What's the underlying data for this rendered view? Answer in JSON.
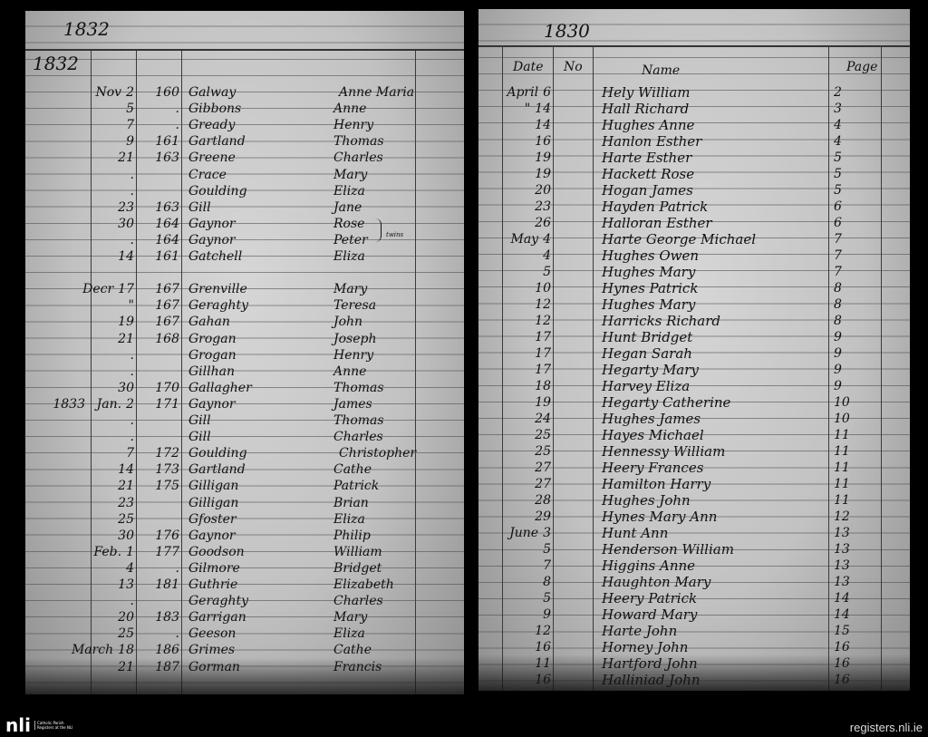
{
  "left_page": {
    "header_year": "1832",
    "column_year": "1832",
    "sections": [
      {
        "rows": [
          {
            "month": "Nov",
            "day": "2",
            "no": "160",
            "surname": "Galway",
            "forename": "Anne Maria"
          },
          {
            "day": "5",
            "no": ".",
            "surname": "Gibbons",
            "forename": "Anne"
          },
          {
            "day": "7",
            "no": ".",
            "surname": "Gready",
            "forename": "Henry"
          },
          {
            "day": "9",
            "no": "161",
            "surname": "Gartland",
            "forename": "Thomas"
          },
          {
            "day": "21",
            "no": "163",
            "surname": "Greene",
            "forename": "Charles"
          },
          {
            "day": ".",
            "surname": "Crace",
            "forename": "Mary"
          },
          {
            "day": ".",
            "surname": "Goulding",
            "forename": "Eliza"
          },
          {
            "day": "23",
            "no": "163",
            "surname": "Gill",
            "forename": "Jane"
          },
          {
            "day": "30",
            "no": "164",
            "surname": "Gaynor",
            "forename": "Rose"
          },
          {
            "day": ".",
            "no": "164",
            "surname": "Gaynor",
            "forename": "Peter",
            "note": "twins"
          },
          {
            "day": "14",
            "no": "161",
            "surname": "Gatchell",
            "forename": "Eliza"
          }
        ]
      },
      {
        "rows": [
          {
            "month": "Decr",
            "day": "17",
            "no": "167",
            "surname": "Grenville",
            "forename": "Mary"
          },
          {
            "day": "\"",
            "no": "167",
            "surname": "Geraghty",
            "forename": "Teresa"
          },
          {
            "day": "19",
            "no": "167",
            "surname": "Gahan",
            "forename": "John"
          },
          {
            "day": "21",
            "no": "168",
            "surname": "Grogan",
            "forename": "Joseph"
          },
          {
            "day": ".",
            "surname": "Grogan",
            "forename": "Henry"
          },
          {
            "day": ".",
            "surname": "Gillhan",
            "forename": "Anne"
          },
          {
            "day": "30",
            "no": "170",
            "surname": "Gallagher",
            "forename": "Thomas"
          },
          {
            "year": "1833",
            "month": "Jan.",
            "day": "2",
            "no": "171",
            "surname": "Gaynor",
            "forename": "James"
          },
          {
            "day": ".",
            "surname": "Gill",
            "forename": "Thomas"
          },
          {
            "day": ".",
            "surname": "Gill",
            "forename": "Charles"
          },
          {
            "day": "7",
            "no": "172",
            "surname": "Goulding",
            "forename": "Christopher"
          },
          {
            "day": "14",
            "no": "173",
            "surname": "Gartland",
            "forename": "Cathe"
          },
          {
            "day": "21",
            "no": "175",
            "surname": "Gilligan",
            "forename": "Patrick"
          },
          {
            "day": "23",
            "surname": "Gilligan",
            "forename": "Brian"
          },
          {
            "day": "25",
            "surname": "Gfoster",
            "forename": "Eliza"
          },
          {
            "day": "30",
            "no": "176",
            "surname": "Gaynor",
            "forename": "Philip"
          },
          {
            "month": "Feb.",
            "day": "1",
            "no": "177",
            "surname": "Goodson",
            "forename": "William"
          },
          {
            "day": "4",
            "no": ".",
            "surname": "Gilmore",
            "forename": "Bridget"
          },
          {
            "day": "13",
            "no": "181",
            "surname": "Guthrie",
            "forename": "Elizabeth"
          },
          {
            "day": ".",
            "surname": "Geraghty",
            "forename": "Charles"
          },
          {
            "day": "20",
            "no": "183",
            "surname": "Garrigan",
            "forename": "Mary"
          },
          {
            "day": "25",
            "no": ".",
            "surname": "Geeson",
            "forename": "Eliza"
          },
          {
            "month": "March",
            "day": "18",
            "no": "186",
            "surname": "Grimes",
            "forename": "Cathe"
          },
          {
            "day": "21",
            "no": "187",
            "surname": "Gorman",
            "forename": "Francis"
          }
        ]
      }
    ]
  },
  "right_page": {
    "header_year": "1830",
    "columns": {
      "date": "Date",
      "no": "No",
      "name": "Name",
      "page": "Page"
    },
    "rows": [
      {
        "month": "April",
        "day": "6",
        "name": "Hely William",
        "page": "2"
      },
      {
        "month": "\"",
        "day": "14",
        "name": "Hall Richard",
        "page": "3"
      },
      {
        "day": "14",
        "name": "Hughes Anne",
        "page": "4"
      },
      {
        "day": "16",
        "name": "Hanlon Esther",
        "page": "4"
      },
      {
        "day": "19",
        "name": "Harte Esther",
        "page": "5"
      },
      {
        "day": "19",
        "name": "Hackett Rose",
        "page": "5"
      },
      {
        "day": "20",
        "name": "Hogan James",
        "page": "5"
      },
      {
        "day": "23",
        "name": "Hayden Patrick",
        "page": "6"
      },
      {
        "day": "26",
        "name": "Halloran Esther",
        "page": "6"
      },
      {
        "month": "May",
        "day": "4",
        "name": "Harte George Michael",
        "page": "7"
      },
      {
        "day": "4",
        "name": "Hughes Owen",
        "page": "7"
      },
      {
        "day": "5",
        "name": "Hughes Mary",
        "page": "7"
      },
      {
        "day": "10",
        "name": "Hynes Patrick",
        "page": "8"
      },
      {
        "day": "12",
        "name": "Hughes Mary",
        "page": "8"
      },
      {
        "day": "12",
        "name": "Harricks Richard",
        "page": "8"
      },
      {
        "day": "17",
        "name": "Hunt Bridget",
        "page": "9"
      },
      {
        "day": "17",
        "name": "Hegan Sarah",
        "page": "9"
      },
      {
        "day": "17",
        "name": "Hegarty Mary",
        "page": "9"
      },
      {
        "day": "18",
        "name": "Harvey Eliza",
        "page": "9"
      },
      {
        "day": "19",
        "name": "Hegarty Catherine",
        "page": "10"
      },
      {
        "day": "24",
        "name": "Hughes James",
        "page": "10"
      },
      {
        "day": "25",
        "name": "Hayes Michael",
        "page": "11"
      },
      {
        "day": "25",
        "name": "Hennessy William",
        "page": "11"
      },
      {
        "day": "27",
        "name": "Heery Frances",
        "page": "11"
      },
      {
        "day": "27",
        "name": "Hamilton Harry",
        "page": "11"
      },
      {
        "day": "28",
        "name": "Hughes John",
        "page": "11"
      },
      {
        "day": "29",
        "name": "Hynes Mary Ann",
        "page": "12"
      },
      {
        "month": "June",
        "day": "3",
        "name": "Hunt Ann",
        "page": "13"
      },
      {
        "day": "5",
        "name": "Henderson William",
        "page": "13"
      },
      {
        "day": "7",
        "name": "Higgins Anne",
        "page": "13"
      },
      {
        "day": "8",
        "name": "Haughton Mary",
        "page": "13"
      },
      {
        "day": "5",
        "name": "Heery Patrick",
        "page": "14"
      },
      {
        "day": "9",
        "name": "Howard Mary",
        "page": "14"
      },
      {
        "day": "12",
        "name": "Harte John",
        "page": "15"
      },
      {
        "day": "16",
        "name": "Horney John",
        "page": "16"
      },
      {
        "day": "11",
        "name": "Hartford John",
        "page": "16"
      },
      {
        "day": "16",
        "name": "Halliniad John",
        "page": "16"
      }
    ]
  },
  "footer": {
    "logo_mark": "nli",
    "logo_text": "Catholic Parish Registers at the NLI",
    "site": "registers.nli.ie"
  }
}
